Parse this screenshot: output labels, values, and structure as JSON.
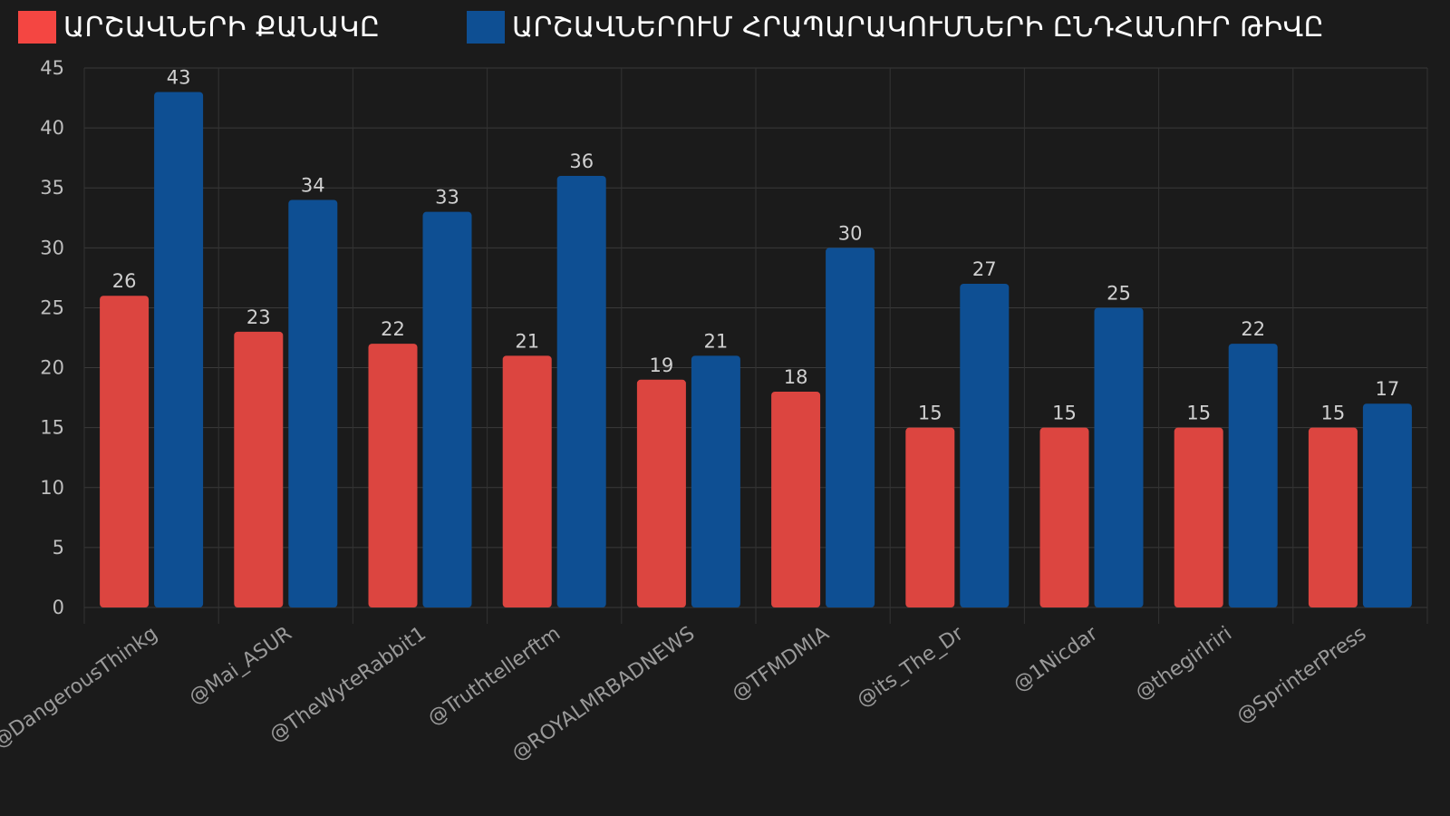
{
  "chart_data": {
    "type": "bar",
    "title": "",
    "xlabel": "",
    "ylabel": "",
    "categories": [
      "@DangerousThinkg",
      "@Mai_ASUR",
      "@TheWyteRabbit1",
      "@Truthtellerftm",
      "@ROYALMRBADNEWS",
      "@TFMDMIA",
      "@its_The_Dr",
      "@1Nicdar",
      "@thegirlriri",
      "@SprinterPress"
    ],
    "series": [
      {
        "name": "ԱՐՇԱՎՆԵՐԻ ՔԱՆԱԿԸ",
        "color": "#dc4540",
        "values": [
          26,
          23,
          22,
          21,
          19,
          18,
          15,
          15,
          15,
          15
        ]
      },
      {
        "name": "ԱՐՇԱՎՆԵՐՈՒՄ ՀՐԱՊԱՐԱԿՈՒՄՆԵՐԻ ԸՆԴՀԱՆՈՒՐ ԹԻՎԸ",
        "color": "#0e4f93",
        "values": [
          43,
          34,
          33,
          36,
          21,
          30,
          27,
          25,
          22,
          17
        ]
      }
    ],
    "ylim": [
      0,
      45
    ],
    "yticks": [
      0,
      5,
      10,
      15,
      20,
      25,
      30,
      35,
      40,
      45
    ],
    "grid": true,
    "legend": "top",
    "legend_swatch_colors": [
      "#f44642",
      "#0e4f93"
    ]
  }
}
